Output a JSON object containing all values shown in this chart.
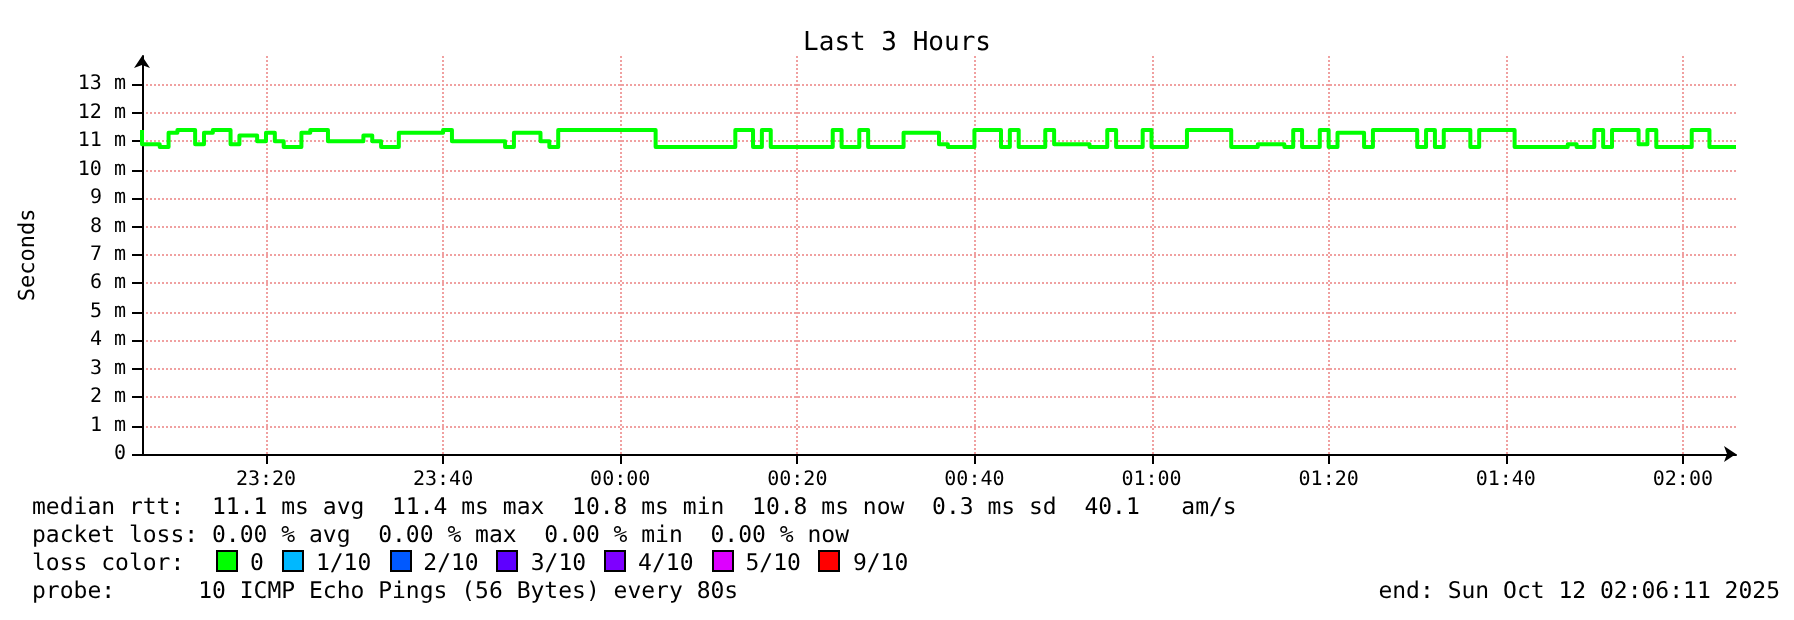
{
  "chart_data": {
    "type": "step",
    "title": "Last 3 Hours",
    "ylabel": "Seconds",
    "x": [
      "2025-10-11T23:06",
      "2025-10-11T23:08",
      "2025-10-11T23:09",
      "2025-10-11T23:10",
      "2025-10-11T23:12",
      "2025-10-11T23:13",
      "2025-10-11T23:14",
      "2025-10-11T23:16",
      "2025-10-11T23:17",
      "2025-10-11T23:19",
      "2025-10-11T23:20",
      "2025-10-11T23:21",
      "2025-10-11T23:22",
      "2025-10-11T23:24",
      "2025-10-11T23:25",
      "2025-10-11T23:27",
      "2025-10-11T23:31",
      "2025-10-11T23:32",
      "2025-10-11T23:33",
      "2025-10-11T23:35",
      "2025-10-11T23:40",
      "2025-10-11T23:41",
      "2025-10-11T23:47",
      "2025-10-11T23:48",
      "2025-10-11T23:51",
      "2025-10-11T23:52",
      "2025-10-11T23:53",
      "2025-10-12T00:04",
      "2025-10-12T00:13",
      "2025-10-12T00:15",
      "2025-10-12T00:16",
      "2025-10-12T00:17",
      "2025-10-12T00:24",
      "2025-10-12T00:25",
      "2025-10-12T00:27",
      "2025-10-12T00:28",
      "2025-10-12T00:32",
      "2025-10-12T00:36",
      "2025-10-12T00:37",
      "2025-10-12T00:40",
      "2025-10-12T00:43",
      "2025-10-12T00:44",
      "2025-10-12T00:45",
      "2025-10-12T00:48",
      "2025-10-12T00:49",
      "2025-10-12T00:53",
      "2025-10-12T00:55",
      "2025-10-12T00:56",
      "2025-10-12T00:59",
      "2025-10-12T01:00",
      "2025-10-12T01:04",
      "2025-10-12T01:09",
      "2025-10-12T01:12",
      "2025-10-12T01:15",
      "2025-10-12T01:16",
      "2025-10-12T01:17",
      "2025-10-12T01:19",
      "2025-10-12T01:20",
      "2025-10-12T01:21",
      "2025-10-12T01:24",
      "2025-10-12T01:25",
      "2025-10-12T01:30",
      "2025-10-12T01:31",
      "2025-10-12T01:32",
      "2025-10-12T01:33",
      "2025-10-12T01:36",
      "2025-10-12T01:37",
      "2025-10-12T01:41",
      "2025-10-12T01:47",
      "2025-10-12T01:48",
      "2025-10-12T01:50",
      "2025-10-12T01:51",
      "2025-10-12T01:52",
      "2025-10-12T01:55",
      "2025-10-12T01:56",
      "2025-10-12T01:57",
      "2025-10-12T02:01",
      "2025-10-12T02:03",
      "2025-10-12T02:04",
      "2025-10-12T02:06"
    ],
    "series": [
      {
        "color": "#00ff00",
        "values": [
          11.4,
          10.9,
          10.8,
          11.3,
          11.4,
          10.9,
          11.3,
          11.4,
          10.9,
          11.2,
          11.0,
          11.3,
          11.0,
          10.8,
          11.3,
          11.4,
          11.0,
          11.2,
          11.0,
          10.8,
          11.3,
          11.4,
          11.0,
          10.8,
          11.3,
          11.0,
          10.8,
          11.4,
          10.8,
          11.4,
          10.8,
          11.4,
          10.8,
          11.4,
          10.8,
          11.4,
          10.8,
          11.3,
          10.9,
          10.8,
          11.4,
          10.8,
          11.4,
          10.8,
          11.4,
          10.9,
          10.8,
          11.4,
          10.8,
          11.4,
          10.8,
          11.4,
          10.8,
          10.9,
          10.8,
          11.4,
          10.8,
          11.4,
          10.8,
          11.3,
          10.8,
          11.4,
          10.8,
          11.4,
          10.8,
          11.4,
          10.8,
          11.4,
          10.8,
          10.9,
          10.8,
          11.4,
          10.8,
          11.4,
          10.9,
          11.4,
          10.8,
          11.4,
          10.8,
          10.8
        ]
      }
    ],
    "xlim": [
      "2025-10-11T23:06",
      "2025-10-12T02:06"
    ],
    "xticks": [
      {
        "value": "2025-10-11T23:20",
        "label": "23:20"
      },
      {
        "value": "2025-10-11T23:40",
        "label": "23:40"
      },
      {
        "value": "2025-10-12T00:00",
        "label": "00:00"
      },
      {
        "value": "2025-10-12T00:20",
        "label": "00:20"
      },
      {
        "value": "2025-10-12T00:40",
        "label": "00:40"
      },
      {
        "value": "2025-10-12T01:00",
        "label": "01:00"
      },
      {
        "value": "2025-10-12T01:20",
        "label": "01:20"
      },
      {
        "value": "2025-10-12T01:40",
        "label": "01:40"
      },
      {
        "value": "2025-10-12T02:00",
        "label": "02:00"
      }
    ],
    "ylim": [
      0,
      14
    ],
    "yticks": [
      0,
      {
        "value": 1,
        "label": "1 m"
      },
      {
        "value": 2,
        "label": "2 m"
      },
      {
        "value": 3,
        "label": "3 m"
      },
      {
        "value": 4,
        "label": "4 m"
      },
      {
        "value": 5,
        "label": "5 m"
      },
      {
        "value": 6,
        "label": "6 m"
      },
      {
        "value": 7,
        "label": "7 m"
      },
      {
        "value": 8,
        "label": "8 m"
      },
      {
        "value": 9,
        "label": "9 m"
      },
      {
        "value": 10,
        "label": "10 m"
      },
      {
        "value": 11,
        "label": "11 m"
      },
      {
        "value": 12,
        "label": "12 m"
      },
      {
        "value": 13,
        "label": "13 m"
      }
    ],
    "grid": true,
    "marker": "none",
    "line_style": "solid",
    "annotations": [
      "median rtt:  11.1 ms avg  11.4 ms max  10.8 ms min  10.8 ms now  0.3 ms sd  40.1   am/s",
      "packet loss: 0.00 % avg  0.00 % max  0.00 % min  0.00 % now",
      "loss color:",
      "0",
      "1/10",
      "2/10",
      "3/10",
      "4/10",
      "5/10",
      "9/10",
      "probe:      10 ICMP Echo Pings (56 Bytes) every 80s",
      "end: Sun Oct 12 02:06:11 2025"
    ]
  }
}
